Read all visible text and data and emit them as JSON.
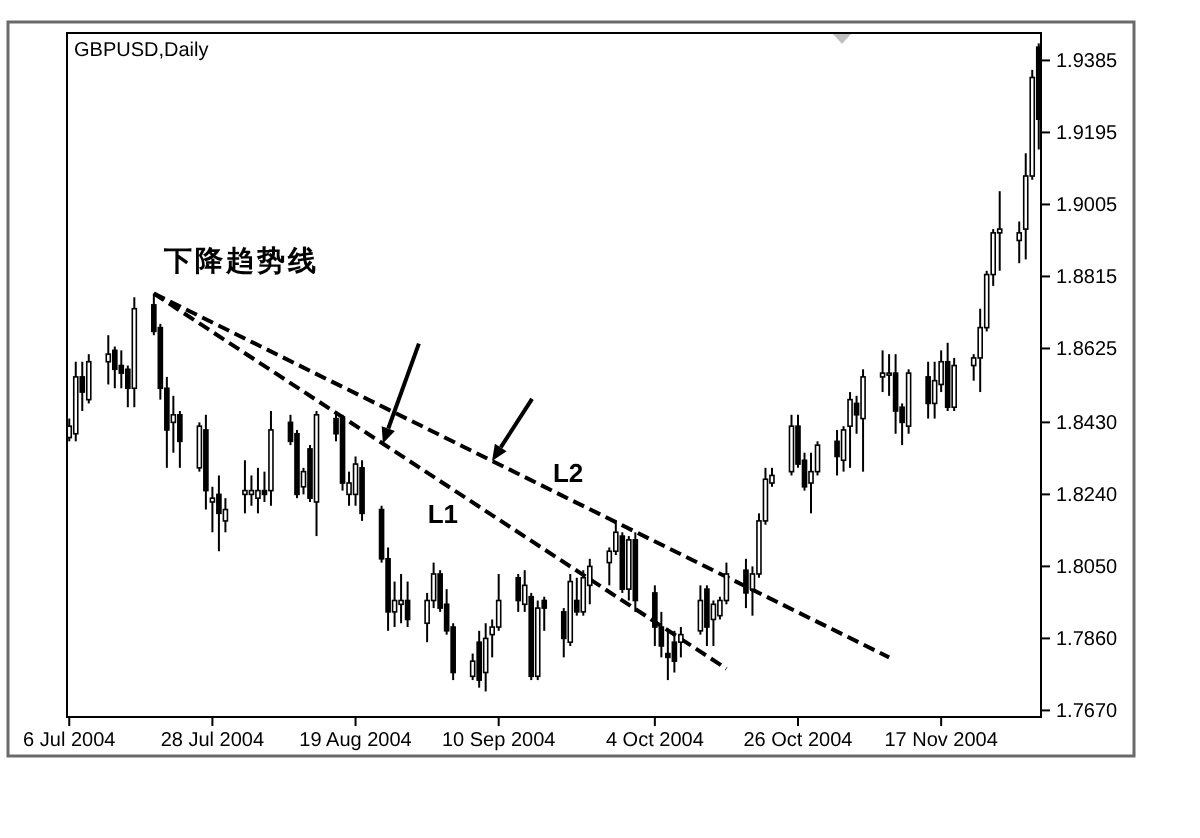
{
  "chart_data": {
    "type": "candlestick",
    "title": "GBPUSD,Daily",
    "x": [
      "2004-07-06",
      "2004-07-07",
      "2004-07-08",
      "2004-07-09",
      "2004-07-12",
      "2004-07-13",
      "2004-07-14",
      "2004-07-15",
      "2004-07-16",
      "2004-07-19",
      "2004-07-20",
      "2004-07-21",
      "2004-07-22",
      "2004-07-23",
      "2004-07-26",
      "2004-07-27",
      "2004-07-28",
      "2004-07-29",
      "2004-07-30",
      "2004-08-02",
      "2004-08-03",
      "2004-08-04",
      "2004-08-05",
      "2004-08-06",
      "2004-08-09",
      "2004-08-10",
      "2004-08-11",
      "2004-08-12",
      "2004-08-13",
      "2004-08-16",
      "2004-08-17",
      "2004-08-18",
      "2004-08-19",
      "2004-08-20",
      "2004-08-23",
      "2004-08-24",
      "2004-08-25",
      "2004-08-26",
      "2004-08-27",
      "2004-08-30",
      "2004-08-31",
      "2004-09-01",
      "2004-09-02",
      "2004-09-03",
      "2004-09-06",
      "2004-09-07",
      "2004-09-08",
      "2004-09-09",
      "2004-09-10",
      "2004-09-13",
      "2004-09-14",
      "2004-09-15",
      "2004-09-16",
      "2004-09-17",
      "2004-09-20",
      "2004-09-21",
      "2004-09-22",
      "2004-09-23",
      "2004-09-24",
      "2004-09-27",
      "2004-09-28",
      "2004-09-29",
      "2004-09-30",
      "2004-10-01",
      "2004-10-04",
      "2004-10-05",
      "2004-10-06",
      "2004-10-07",
      "2004-10-08",
      "2004-10-11",
      "2004-10-12",
      "2004-10-13",
      "2004-10-14",
      "2004-10-15",
      "2004-10-18",
      "2004-10-19",
      "2004-10-20",
      "2004-10-21",
      "2004-10-22",
      "2004-10-25",
      "2004-10-26",
      "2004-10-27",
      "2004-10-28",
      "2004-10-29",
      "2004-11-01",
      "2004-11-02",
      "2004-11-03",
      "2004-11-04",
      "2004-11-05",
      "2004-11-08",
      "2004-11-09",
      "2004-11-10",
      "2004-11-11",
      "2004-11-12",
      "2004-11-15",
      "2004-11-16",
      "2004-11-17",
      "2004-11-18",
      "2004-11-19",
      "2004-11-22",
      "2004-11-23",
      "2004-11-24",
      "2004-11-25",
      "2004-11-26",
      "2004-11-29",
      "2004-11-30",
      "2004-12-01",
      "2004-12-02"
    ],
    "ohlc": [
      [
        1.839,
        1.844,
        1.838,
        1.842
      ],
      [
        1.84,
        1.859,
        1.838,
        1.855
      ],
      [
        1.855,
        1.859,
        1.846,
        1.851
      ],
      [
        1.849,
        1.861,
        1.848,
        1.859
      ],
      [
        1.859,
        1.866,
        1.853,
        1.861
      ],
      [
        1.862,
        1.863,
        1.852,
        1.857
      ],
      [
        1.858,
        1.862,
        1.852,
        1.856
      ],
      [
        1.857,
        1.858,
        1.847,
        1.852
      ],
      [
        1.852,
        1.876,
        1.847,
        1.873
      ],
      [
        1.874,
        1.877,
        1.866,
        1.867
      ],
      [
        1.868,
        1.869,
        1.849,
        1.852
      ],
      [
        1.852,
        1.855,
        1.831,
        1.841
      ],
      [
        1.843,
        1.85,
        1.835,
        1.845
      ],
      [
        1.845,
        1.846,
        1.831,
        1.838
      ],
      [
        1.831,
        1.843,
        1.83,
        1.842
      ],
      [
        1.841,
        1.845,
        1.82,
        1.825
      ],
      [
        1.822,
        1.826,
        1.814,
        1.823
      ],
      [
        1.824,
        1.829,
        1.809,
        1.819
      ],
      [
        1.817,
        1.823,
        1.814,
        1.82
      ],
      [
        1.824,
        1.833,
        1.819,
        1.825
      ],
      [
        1.824,
        1.829,
        1.821,
        1.825
      ],
      [
        1.823,
        1.831,
        1.819,
        1.825
      ],
      [
        1.825,
        1.83,
        1.822,
        1.824
      ],
      [
        1.825,
        1.846,
        1.821,
        1.841
      ],
      [
        1.843,
        1.845,
        1.837,
        1.838
      ],
      [
        1.84,
        1.841,
        1.823,
        1.824
      ],
      [
        1.826,
        1.831,
        1.824,
        1.83
      ],
      [
        1.836,
        1.837,
        1.822,
        1.823
      ],
      [
        1.822,
        1.846,
        1.813,
        1.845
      ],
      [
        1.844,
        1.846,
        1.838,
        1.84
      ],
      [
        1.844,
        1.845,
        1.825,
        1.827
      ],
      [
        1.824,
        1.83,
        1.821,
        1.827
      ],
      [
        1.824,
        1.834,
        1.821,
        1.832
      ],
      [
        1.831,
        1.833,
        1.817,
        1.819
      ],
      [
        1.82,
        1.821,
        1.806,
        1.807
      ],
      [
        1.807,
        1.81,
        1.788,
        1.793
      ],
      [
        1.793,
        1.801,
        1.789,
        1.796
      ],
      [
        1.795,
        1.803,
        1.79,
        1.796
      ],
      [
        1.796,
        1.801,
        1.789,
        1.791
      ],
      [
        1.79,
        1.798,
        1.785,
        1.796
      ],
      [
        1.796,
        1.806,
        1.794,
        1.803
      ],
      [
        1.803,
        1.804,
        1.793,
        1.794
      ],
      [
        1.795,
        1.799,
        1.787,
        1.788
      ],
      [
        1.789,
        1.79,
        1.775,
        1.777
      ],
      [
        1.776,
        1.782,
        1.775,
        1.78
      ],
      [
        1.785,
        1.788,
        1.773,
        1.775
      ],
      [
        1.777,
        1.79,
        1.772,
        1.786
      ],
      [
        1.787,
        1.791,
        1.781,
        1.789
      ],
      [
        1.789,
        1.803,
        1.788,
        1.796
      ],
      [
        1.802,
        1.803,
        1.793,
        1.796
      ],
      [
        1.795,
        1.804,
        1.793,
        1.8
      ],
      [
        1.797,
        1.798,
        1.775,
        1.776
      ],
      [
        1.776,
        1.796,
        1.775,
        1.794
      ],
      [
        1.796,
        1.797,
        1.788,
        1.794
      ],
      [
        1.793,
        1.794,
        1.781,
        1.786
      ],
      [
        1.785,
        1.803,
        1.784,
        1.801
      ],
      [
        1.796,
        1.802,
        1.792,
        1.793
      ],
      [
        1.793,
        1.804,
        1.792,
        1.802
      ],
      [
        1.8,
        1.807,
        1.795,
        1.805
      ],
      [
        1.806,
        1.81,
        1.8,
        1.809
      ],
      [
        1.809,
        1.817,
        1.808,
        1.814
      ],
      [
        1.813,
        1.814,
        1.798,
        1.799
      ],
      [
        1.799,
        1.813,
        1.796,
        1.812
      ],
      [
        1.812,
        1.814,
        1.793,
        1.796
      ],
      [
        1.798,
        1.8,
        1.784,
        1.789
      ],
      [
        1.789,
        1.793,
        1.781,
        1.784
      ],
      [
        1.782,
        1.788,
        1.775,
        1.781
      ],
      [
        1.785,
        1.788,
        1.777,
        1.78
      ],
      [
        1.785,
        1.789,
        1.781,
        1.787
      ],
      [
        1.788,
        1.8,
        1.787,
        1.796
      ],
      [
        1.799,
        1.8,
        1.784,
        1.789
      ],
      [
        1.791,
        1.796,
        1.784,
        1.795
      ],
      [
        1.792,
        1.797,
        1.791,
        1.796
      ],
      [
        1.796,
        1.806,
        1.795,
        1.803
      ],
      [
        1.804,
        1.807,
        1.794,
        1.798
      ],
      [
        1.799,
        1.805,
        1.792,
        1.803
      ],
      [
        1.803,
        1.819,
        1.802,
        1.817
      ],
      [
        1.817,
        1.831,
        1.816,
        1.828
      ],
      [
        1.827,
        1.831,
        1.826,
        1.829
      ],
      [
        1.83,
        1.845,
        1.829,
        1.842
      ],
      [
        1.842,
        1.845,
        1.831,
        1.832
      ],
      [
        1.833,
        1.835,
        1.825,
        1.826
      ],
      [
        1.827,
        1.835,
        1.819,
        1.83
      ],
      [
        1.83,
        1.838,
        1.829,
        1.837
      ],
      [
        1.838,
        1.841,
        1.829,
        1.834
      ],
      [
        1.833,
        1.842,
        1.83,
        1.841
      ],
      [
        1.842,
        1.851,
        1.831,
        1.849
      ],
      [
        1.848,
        1.85,
        1.84,
        1.845
      ],
      [
        1.844,
        1.857,
        1.83,
        1.855
      ],
      [
        1.855,
        1.862,
        1.851,
        1.856
      ],
      [
        1.856,
        1.861,
        1.85,
        1.856
      ],
      [
        1.856,
        1.861,
        1.84,
        1.846
      ],
      [
        1.847,
        1.848,
        1.837,
        1.843
      ],
      [
        1.842,
        1.857,
        1.84,
        1.856
      ],
      [
        1.855,
        1.859,
        1.844,
        1.848
      ],
      [
        1.848,
        1.859,
        1.844,
        1.854
      ],
      [
        1.853,
        1.862,
        1.851,
        1.859
      ],
      [
        1.859,
        1.864,
        1.846,
        1.847
      ],
      [
        1.847,
        1.86,
        1.846,
        1.858
      ],
      [
        1.858,
        1.861,
        1.854,
        1.86
      ],
      [
        1.86,
        1.873,
        1.851,
        1.868
      ],
      [
        1.868,
        1.883,
        1.867,
        1.882
      ],
      [
        1.882,
        1.894,
        1.879,
        1.893
      ],
      [
        1.893,
        1.904,
        1.883,
        1.894
      ],
      [
        1.891,
        1.896,
        1.885,
        1.893
      ],
      [
        1.894,
        1.914,
        1.886,
        1.908
      ],
      [
        1.908,
        1.936,
        1.907,
        1.934
      ],
      [
        1.942,
        1.943,
        1.915,
        1.923
      ]
    ],
    "series": [
      {
        "type": "line",
        "name": "L1",
        "x": [
          "2004-07-19",
          "2004-10-15"
        ],
        "values": [
          1.877,
          1.778
        ],
        "color": "#000000",
        "line_style": "dashed"
      },
      {
        "type": "line",
        "name": "L2",
        "x": [
          "2004-07-19",
          "2004-11-09"
        ],
        "values": [
          1.877,
          1.781
        ],
        "color": "#000000",
        "line_style": "dashed"
      }
    ],
    "annotations": [
      {
        "text": "下降趋势线",
        "x": "2004-07-19",
        "y": 1.877
      }
    ],
    "xlim": [
      "2004-07-05T12:00",
      "2004-12-02T12:00"
    ],
    "xticks": [
      {
        "value": "2004-07-06",
        "label": "6 Jul 2004"
      },
      {
        "value": "2004-07-28",
        "label": "28 Jul 2004"
      },
      {
        "value": "2004-08-19",
        "label": "19 Aug 2004"
      },
      {
        "value": "2004-09-10",
        "label": "10 Sep 2004"
      },
      {
        "value": "2004-10-04",
        "label": "4 Oct 2004"
      },
      {
        "value": "2004-10-26",
        "label": "26 Oct 2004"
      },
      {
        "value": "2004-11-17",
        "label": "17 Nov 2004"
      }
    ],
    "ylim": [
      1.765,
      1.946
    ],
    "yticks": [
      {
        "value": 1.767,
        "label": "1.7670"
      },
      {
        "value": 1.786,
        "label": "1.7860"
      },
      {
        "value": 1.805,
        "label": "1.8050"
      },
      {
        "value": 1.824,
        "label": "1.8240"
      },
      {
        "value": 1.843,
        "label": "1.8430"
      },
      1.8625,
      1.8815,
      1.9005,
      1.9195,
      1.9385
    ]
  }
}
